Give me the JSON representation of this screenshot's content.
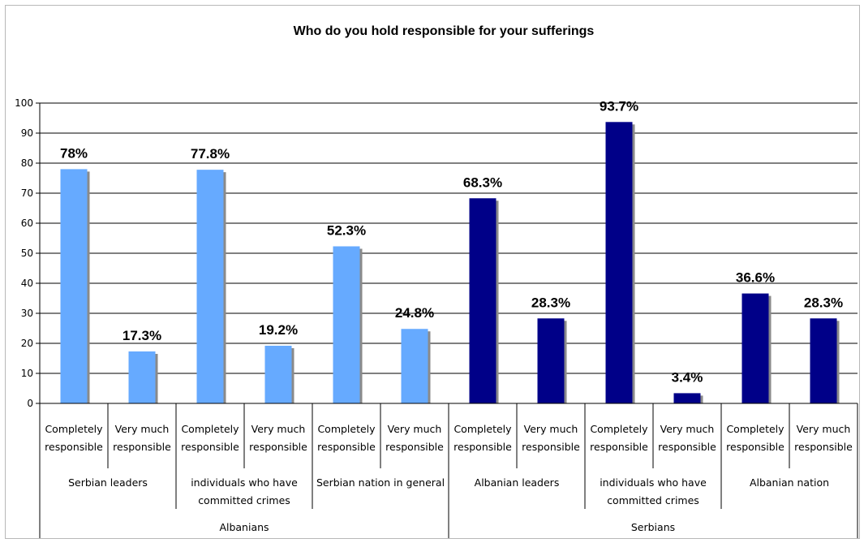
{
  "chart_data": {
    "type": "bar",
    "title": "Who do you hold responsible for your sufferings",
    "ylim": [
      0,
      100
    ],
    "yticks": [
      0,
      10,
      20,
      30,
      40,
      50,
      60,
      70,
      80,
      90,
      100
    ],
    "grid": true,
    "legend": "none",
    "groups": [
      {
        "label": "Albanians",
        "color": "#66aaff",
        "subgroups": [
          {
            "label": "Serbian leaders",
            "bars": [
              {
                "label_lines": [
                  "Completely",
                  "responsible"
                ],
                "value": 78,
                "value_label": "78%"
              },
              {
                "label_lines": [
                  "Very much",
                  "responsible"
                ],
                "value": 17.3,
                "value_label": "17.3%"
              }
            ]
          },
          {
            "label_lines": [
              "individuals who have",
              "committed crimes"
            ],
            "bars": [
              {
                "label_lines": [
                  "Completely",
                  "responsible"
                ],
                "value": 77.8,
                "value_label": "77.8%"
              },
              {
                "label_lines": [
                  "Very much",
                  "responsible"
                ],
                "value": 19.2,
                "value_label": "19.2%"
              }
            ]
          },
          {
            "label": "Serbian nation in general",
            "bars": [
              {
                "label_lines": [
                  "Completely",
                  "responsible"
                ],
                "value": 52.3,
                "value_label": "52.3%"
              },
              {
                "label_lines": [
                  "Very much",
                  "responsible"
                ],
                "value": 24.8,
                "value_label": "24.8%"
              }
            ]
          }
        ]
      },
      {
        "label": "Serbians",
        "color": "#000088",
        "subgroups": [
          {
            "label": "Albanian leaders",
            "bars": [
              {
                "label_lines": [
                  "Completely",
                  "responsible"
                ],
                "value": 68.3,
                "value_label": "68.3%"
              },
              {
                "label_lines": [
                  "Very much",
                  "responsible"
                ],
                "value": 28.3,
                "value_label": "28.3%"
              }
            ]
          },
          {
            "label_lines": [
              "individuals who have",
              "committed crimes"
            ],
            "bars": [
              {
                "label_lines": [
                  "Completely",
                  "responsible"
                ],
                "value": 93.7,
                "value_label": "93.7%"
              },
              {
                "label_lines": [
                  "Very much",
                  "responsible"
                ],
                "value": 3.4,
                "value_label": "3.4%"
              }
            ]
          },
          {
            "label": "Albanian nation",
            "bars": [
              {
                "label_lines": [
                  "Completely",
                  "responsible"
                ],
                "value": 36.6,
                "value_label": "36.6%"
              },
              {
                "label_lines": [
                  "Very much",
                  "responsible"
                ],
                "value": 28.3,
                "value_label": "28.3%"
              }
            ]
          }
        ]
      }
    ]
  }
}
